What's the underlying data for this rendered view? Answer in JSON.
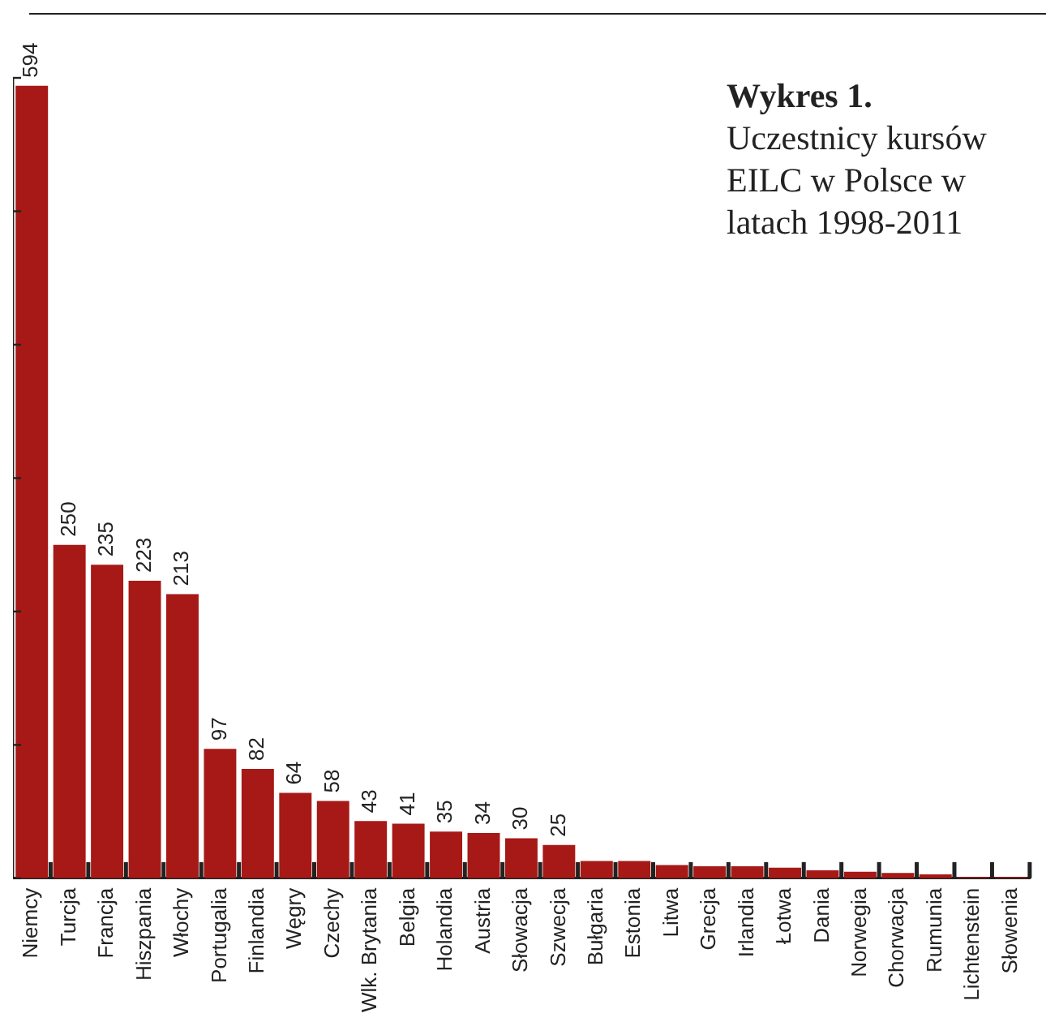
{
  "chart_data": {
    "type": "bar",
    "title": "Wykres 1.",
    "subtitle": "Uczestnicy kursów EILC w Polsce w latach 1998-2011",
    "categories": [
      "Niemcy",
      "Turcja",
      "Francja",
      "Hiszpania",
      "Włochy",
      "Portugalia",
      "Finlandia",
      "Węgry",
      "Czechy",
      "Wlk. Brytania",
      "Belgia",
      "Holandia",
      "Austria",
      "Słowacja",
      "Szwecja",
      "Bułgaria",
      "Estonia",
      "Litwa",
      "Grecja",
      "Irlandia",
      "Łotwa",
      "Dania",
      "Norwegia",
      "Chorwacja",
      "Rumunia",
      "Lichtenstein",
      "Słowenia"
    ],
    "values": [
      594,
      250,
      235,
      223,
      213,
      97,
      82,
      64,
      58,
      43,
      41,
      35,
      34,
      30,
      25,
      13,
      13,
      10,
      9,
      9,
      8,
      6,
      5,
      4,
      3,
      1,
      1
    ],
    "value_labels": [
      "594",
      "250",
      "235",
      "223",
      "213",
      "97",
      "82",
      "64",
      "58",
      "43",
      "41",
      "35",
      "34",
      "30",
      "25",
      null,
      null,
      null,
      null,
      null,
      null,
      null,
      null,
      null,
      null,
      null,
      null
    ],
    "color": "#a61916",
    "ylim": [
      0,
      600
    ],
    "yticks": [
      {
        "value": 0,
        "label": null
      },
      {
        "value": 100,
        "label": null
      },
      {
        "value": 200,
        "label": null
      },
      {
        "value": 300,
        "label": null
      },
      {
        "value": 400,
        "label": null
      },
      {
        "value": 500,
        "label": null
      },
      {
        "value": 600,
        "label": null
      }
    ],
    "grid": false,
    "legend": false
  }
}
